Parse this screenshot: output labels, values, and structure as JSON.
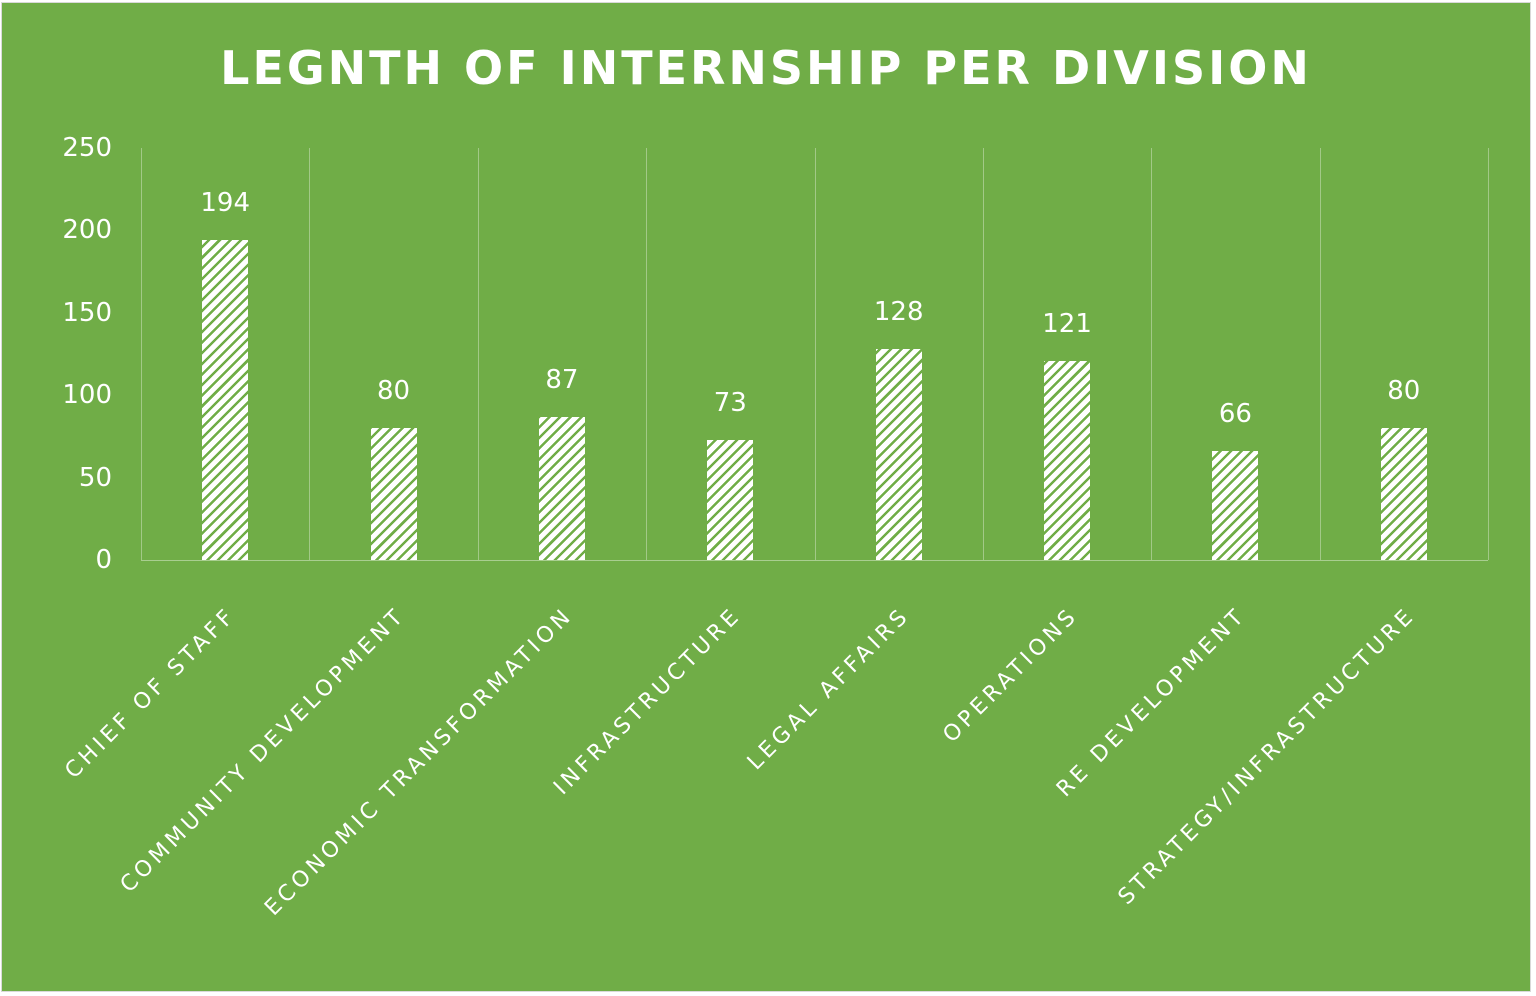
{
  "chart_data": {
    "type": "bar",
    "title": "LEGNTH OF INTERNSHIP PER DIVISION",
    "xlabel": "",
    "ylabel": "",
    "ylim": [
      0,
      250
    ],
    "yticks": [
      "0",
      "50",
      "100",
      "150",
      "200",
      "250"
    ],
    "categories": [
      "CHIEF OF STAFF",
      "COMMUNITY DEVELOPMENT",
      "ECONOMIC TRANSFORMATION",
      "INFRASTRUCTURE",
      "LEGAL AFFAIRS",
      "OPERATIONS",
      "RE DEVELOPMENT",
      "STRATEGY/INFRASTRUCTURE"
    ],
    "values": [
      194,
      80,
      87,
      73,
      128,
      121,
      66,
      80
    ],
    "data_labels": [
      "194",
      "80",
      "87",
      "73",
      "128",
      "121",
      "66",
      "80"
    ],
    "grid": "vertical category separators",
    "legend": "none",
    "colors": {
      "background": "#70AD47",
      "bar_fill": "#FFFFFF",
      "bar_pattern": "diagonal stripes",
      "text": "#FFFFFF"
    }
  }
}
